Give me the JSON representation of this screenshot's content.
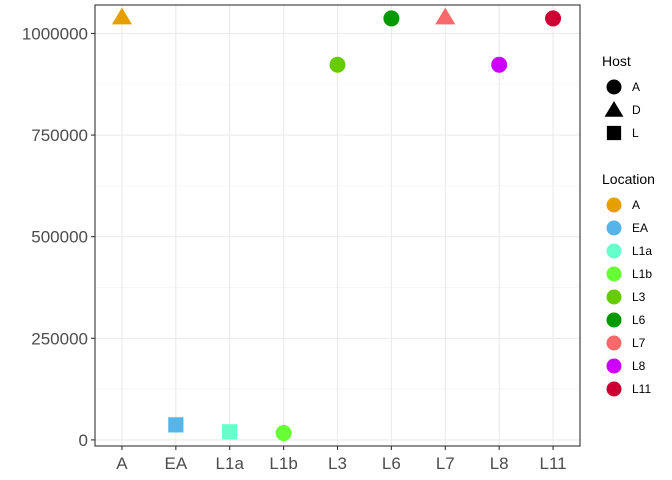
{
  "chart_data": {
    "type": "scatter",
    "title": "",
    "xlabel": "",
    "ylabel": "",
    "categories": [
      "A",
      "EA",
      "L1a",
      "L1b",
      "L3",
      "L6",
      "L7",
      "L8",
      "L11"
    ],
    "ylim": [
      -15000,
      1070000
    ],
    "y_ticks": [
      0,
      250000,
      500000,
      750000,
      1000000
    ],
    "y_tick_labels": [
      "0",
      "250000",
      "500000",
      "750000",
      "1000000"
    ],
    "grid": true,
    "points": [
      {
        "x": "A",
        "y": 1040000,
        "host": "D",
        "location": "A"
      },
      {
        "x": "EA",
        "y": 37000,
        "host": "L",
        "location": "EA"
      },
      {
        "x": "L1a",
        "y": 20000,
        "host": "L",
        "location": "L1a"
      },
      {
        "x": "L1b",
        "y": 17000,
        "host": "A",
        "location": "L1b"
      },
      {
        "x": "L3",
        "y": 923000,
        "host": "A",
        "location": "L3"
      },
      {
        "x": "L6",
        "y": 1037000,
        "host": "A",
        "location": "L6"
      },
      {
        "x": "L7",
        "y": 1040000,
        "host": "D",
        "location": "L7"
      },
      {
        "x": "L8",
        "y": 923000,
        "host": "A",
        "location": "L8"
      },
      {
        "x": "L11",
        "y": 1037000,
        "host": "A",
        "location": "L11"
      }
    ],
    "legend_placement": "right",
    "legends": [
      {
        "title": "Host",
        "kind": "shape",
        "items": [
          {
            "label": "A",
            "shape": "circle"
          },
          {
            "label": "D",
            "shape": "triangle"
          },
          {
            "label": "L",
            "shape": "square"
          }
        ]
      },
      {
        "title": "Location",
        "kind": "color",
        "items": [
          {
            "label": "A",
            "color": "#E69F00"
          },
          {
            "label": "EA",
            "color": "#56B4E9"
          },
          {
            "label": "L1a",
            "color": "#66FFCC"
          },
          {
            "label": "L1b",
            "color": "#66FF33"
          },
          {
            "label": "L3",
            "color": "#66CC00"
          },
          {
            "label": "L6",
            "color": "#009900"
          },
          {
            "label": "L7",
            "color": "#F8696B"
          },
          {
            "label": "L8",
            "color": "#CC00FF"
          },
          {
            "label": "L11",
            "color": "#CC0033"
          }
        ]
      }
    ]
  }
}
